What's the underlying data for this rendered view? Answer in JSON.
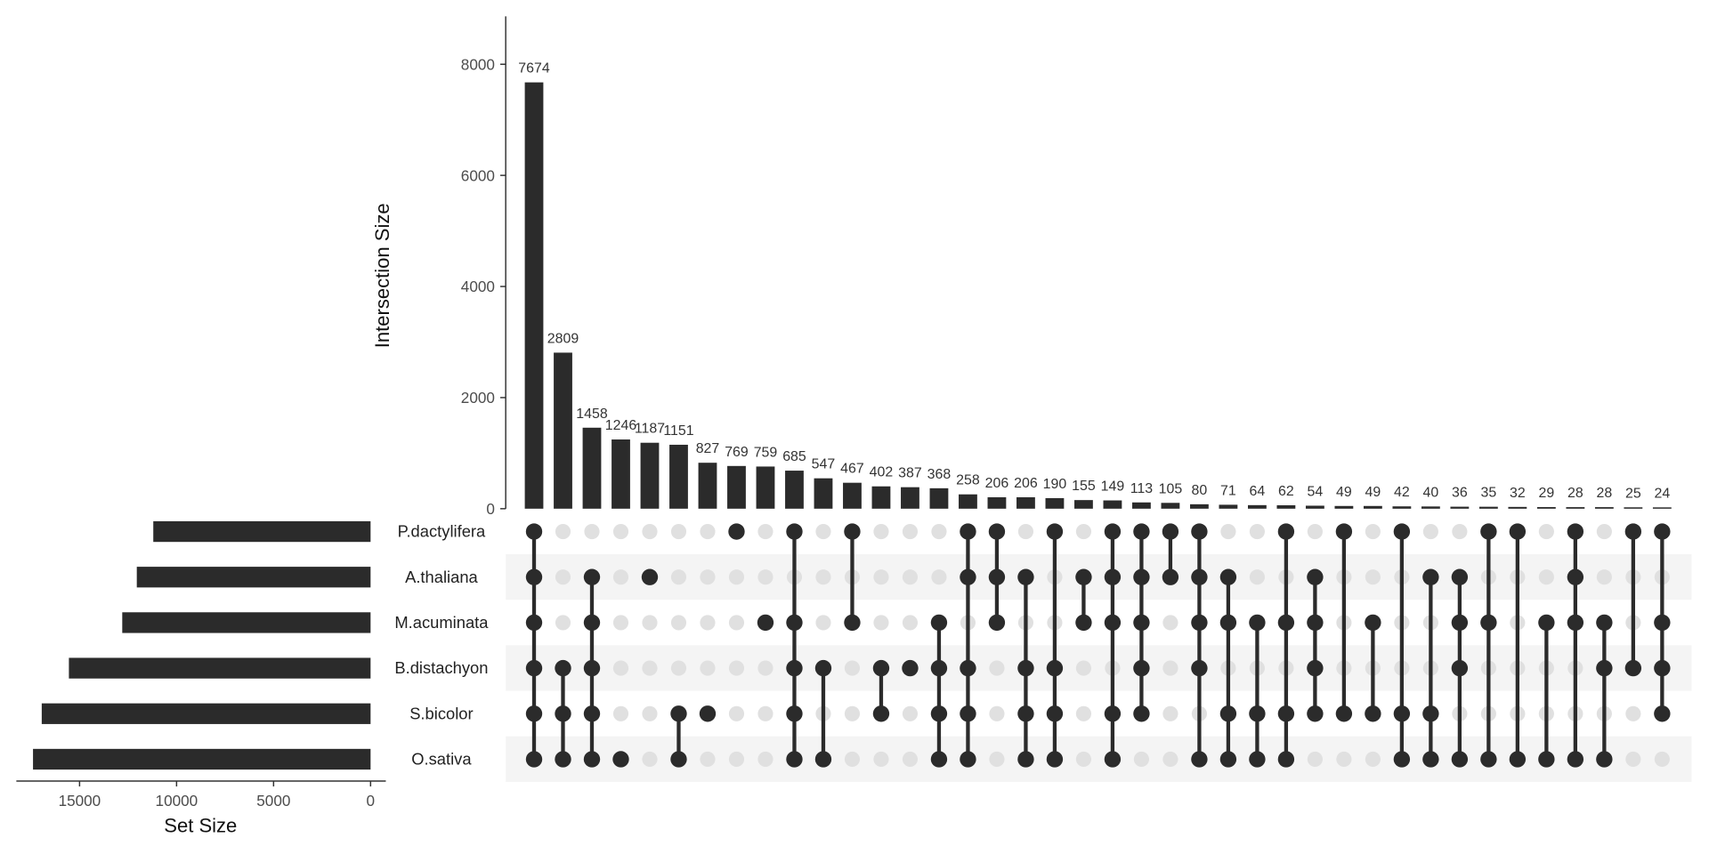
{
  "chart_data": {
    "type": "upset",
    "intersection_axis": {
      "label": "Intersection Size",
      "ylim": [
        0,
        8800
      ],
      "ticks": [
        0,
        2000,
        4000,
        6000,
        8000
      ]
    },
    "set_size_axis": {
      "label": "Set Size",
      "xlim": [
        18500,
        0
      ],
      "ticks": [
        15000,
        10000,
        5000,
        0
      ]
    },
    "sets": [
      {
        "name": "P.dactylifera",
        "size": 11200
      },
      {
        "name": "A.thaliana",
        "size": 12050
      },
      {
        "name": "M.acuminata",
        "size": 12800
      },
      {
        "name": "B.distachyon",
        "size": 15550
      },
      {
        "name": "S.bicolor",
        "size": 16950
      },
      {
        "name": "O.sativa",
        "size": 17400
      }
    ],
    "intersections": [
      {
        "value": 7674,
        "members": [
          "P.dactylifera",
          "A.thaliana",
          "M.acuminata",
          "B.distachyon",
          "S.bicolor",
          "O.sativa"
        ]
      },
      {
        "value": 2809,
        "members": [
          "B.distachyon",
          "S.bicolor",
          "O.sativa"
        ]
      },
      {
        "value": 1458,
        "members": [
          "A.thaliana",
          "M.acuminata",
          "B.distachyon",
          "S.bicolor",
          "O.sativa"
        ]
      },
      {
        "value": 1246,
        "members": [
          "O.sativa"
        ]
      },
      {
        "value": 1187,
        "members": [
          "A.thaliana"
        ]
      },
      {
        "value": 1151,
        "members": [
          "S.bicolor",
          "O.sativa"
        ]
      },
      {
        "value": 827,
        "members": [
          "S.bicolor"
        ]
      },
      {
        "value": 769,
        "members": [
          "P.dactylifera"
        ]
      },
      {
        "value": 759,
        "members": [
          "M.acuminata"
        ]
      },
      {
        "value": 685,
        "members": [
          "P.dactylifera",
          "M.acuminata",
          "B.distachyon",
          "S.bicolor",
          "O.sativa"
        ]
      },
      {
        "value": 547,
        "members": [
          "B.distachyon",
          "O.sativa"
        ]
      },
      {
        "value": 467,
        "members": [
          "P.dactylifera",
          "M.acuminata"
        ]
      },
      {
        "value": 402,
        "members": [
          "B.distachyon",
          "S.bicolor"
        ]
      },
      {
        "value": 387,
        "members": [
          "B.distachyon"
        ]
      },
      {
        "value": 368,
        "members": [
          "M.acuminata",
          "B.distachyon",
          "S.bicolor",
          "O.sativa"
        ]
      },
      {
        "value": 258,
        "members": [
          "P.dactylifera",
          "A.thaliana",
          "B.distachyon",
          "S.bicolor",
          "O.sativa"
        ]
      },
      {
        "value": 206,
        "members": [
          "P.dactylifera",
          "A.thaliana",
          "M.acuminata"
        ]
      },
      {
        "value": 206,
        "members": [
          "A.thaliana",
          "B.distachyon",
          "S.bicolor",
          "O.sativa"
        ]
      },
      {
        "value": 190,
        "members": [
          "P.dactylifera",
          "B.distachyon",
          "S.bicolor",
          "O.sativa"
        ]
      },
      {
        "value": 155,
        "members": [
          "A.thaliana",
          "M.acuminata"
        ]
      },
      {
        "value": 149,
        "members": [
          "P.dactylifera",
          "A.thaliana",
          "M.acuminata",
          "S.bicolor",
          "O.sativa"
        ]
      },
      {
        "value": 113,
        "members": [
          "P.dactylifera",
          "A.thaliana",
          "M.acuminata",
          "B.distachyon",
          "S.bicolor"
        ]
      },
      {
        "value": 105,
        "members": [
          "P.dactylifera",
          "A.thaliana"
        ]
      },
      {
        "value": 80,
        "members": [
          "P.dactylifera",
          "A.thaliana",
          "M.acuminata",
          "B.distachyon",
          "O.sativa"
        ]
      },
      {
        "value": 71,
        "members": [
          "A.thaliana",
          "M.acuminata",
          "S.bicolor",
          "O.sativa"
        ]
      },
      {
        "value": 64,
        "members": [
          "M.acuminata",
          "S.bicolor",
          "O.sativa"
        ]
      },
      {
        "value": 62,
        "members": [
          "P.dactylifera",
          "M.acuminata",
          "S.bicolor",
          "O.sativa"
        ]
      },
      {
        "value": 54,
        "members": [
          "A.thaliana",
          "M.acuminata",
          "B.distachyon",
          "S.bicolor"
        ]
      },
      {
        "value": 49,
        "members": [
          "P.dactylifera",
          "S.bicolor"
        ]
      },
      {
        "value": 49,
        "members": [
          "M.acuminata",
          "S.bicolor"
        ]
      },
      {
        "value": 42,
        "members": [
          "P.dactylifera",
          "S.bicolor",
          "O.sativa"
        ]
      },
      {
        "value": 40,
        "members": [
          "A.thaliana",
          "S.bicolor",
          "O.sativa"
        ]
      },
      {
        "value": 36,
        "members": [
          "A.thaliana",
          "M.acuminata",
          "B.distachyon",
          "O.sativa"
        ]
      },
      {
        "value": 35,
        "members": [
          "P.dactylifera",
          "M.acuminata",
          "O.sativa"
        ]
      },
      {
        "value": 32,
        "members": [
          "P.dactylifera",
          "O.sativa"
        ]
      },
      {
        "value": 29,
        "members": [
          "M.acuminata",
          "O.sativa"
        ]
      },
      {
        "value": 28,
        "members": [
          "P.dactylifera",
          "A.thaliana",
          "M.acuminata",
          "O.sativa"
        ]
      },
      {
        "value": 28,
        "members": [
          "M.acuminata",
          "B.distachyon",
          "O.sativa"
        ]
      },
      {
        "value": 25,
        "members": [
          "P.dactylifera",
          "B.distachyon"
        ]
      },
      {
        "value": 24,
        "members": [
          "P.dactylifera",
          "M.acuminata",
          "B.distachyon",
          "S.bicolor"
        ]
      }
    ],
    "colors": {
      "bar": "#2b2b2b",
      "dot_on": "#2b2b2b",
      "dot_off": "#e0e0e0",
      "band": "#f4f4f4"
    }
  }
}
